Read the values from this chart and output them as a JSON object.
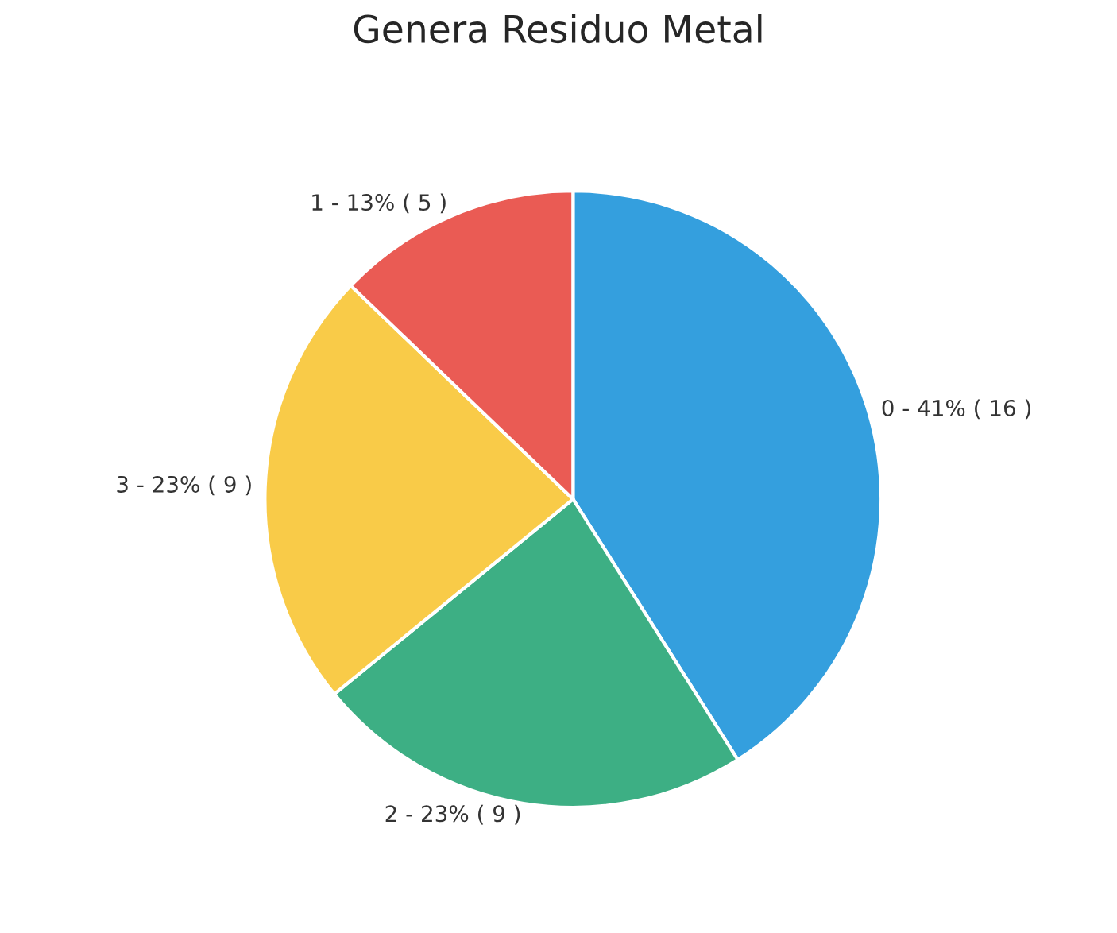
{
  "chart_data": {
    "type": "pie",
    "title": "Genera Residuo Metal",
    "categories": [
      "0",
      "2",
      "3",
      "1"
    ],
    "values": [
      16,
      9,
      9,
      5
    ],
    "value_labels": [
      "41% ( 16 )",
      "23% ( 9 )",
      "23% ( 9 )",
      "13% ( 5 )"
    ],
    "colors": [
      "#349fde",
      "#3daf84",
      "#f9cb48",
      "#ea5b54"
    ]
  }
}
